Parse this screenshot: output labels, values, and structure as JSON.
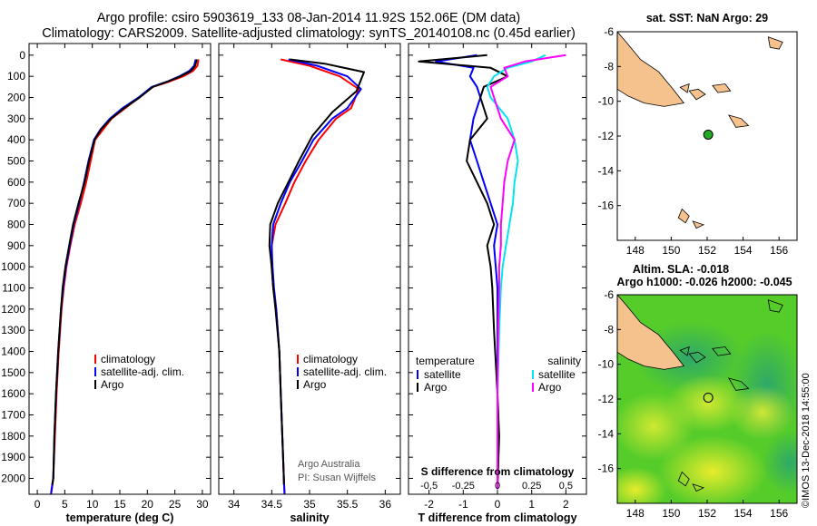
{
  "figure": {
    "title_line1": "Argo profile: csiro 5903619_133 08-Jan-2014 11.92S 152.06E (DM data)",
    "title_line2": "Climatology: CARS2009. Satellite-adjusted climatology: synTS_20140108.nc (0.45d earlier)",
    "credit": "©IMOS 13-Dec-2018 14:55:00"
  },
  "colors": {
    "climatology": "#ff0000",
    "satellite": "#0000ff",
    "argo": "#000000",
    "salinity_sat": "#00e5ee",
    "salinity_argo": "#ff00ff",
    "land": "#f5c28e",
    "float": "#22aa22"
  },
  "depth_axis": {
    "ticks": [
      0,
      100,
      200,
      300,
      400,
      500,
      600,
      700,
      800,
      900,
      1000,
      1100,
      1200,
      1300,
      1400,
      1500,
      1600,
      1700,
      1800,
      1900,
      2000
    ],
    "labels": [
      "0",
      "100",
      "200",
      "300",
      "400",
      "500",
      "600",
      "700",
      "800",
      "900",
      "1000",
      "1100",
      "1200",
      "1300",
      "1400",
      "1500",
      "1600",
      "1700",
      "1800",
      "1900",
      "2000"
    ],
    "range": [
      -55,
      2075
    ]
  },
  "chart_data": [
    {
      "type": "line",
      "id": "temperature",
      "xlabel": "temperature (deg C)",
      "xlim": [
        -1.5,
        31.5
      ],
      "xticks": [
        0,
        5,
        10,
        15,
        20,
        25,
        30
      ],
      "xticklabels": [
        "0",
        "5",
        "10",
        "15",
        "20",
        "25",
        "30"
      ],
      "legend": [
        "climatology",
        "satellite-adj. clim.",
        "Argo"
      ],
      "series": [
        {
          "name": "climatology",
          "color": "#ff0000",
          "x": [
            29.3,
            29.1,
            28.3,
            26.5,
            24.0,
            21.0,
            18.5,
            16.0,
            13.5,
            12.0,
            10.5,
            9.7,
            8.9,
            7.9,
            6.8,
            6.0,
            5.3,
            4.8,
            4.4,
            3.9,
            3.5,
            3.2,
            2.9,
            2.65,
            2.5
          ],
          "y": [
            20,
            50,
            75,
            100,
            125,
            150,
            200,
            250,
            300,
            350,
            400,
            500,
            600,
            700,
            800,
            900,
            1000,
            1100,
            1200,
            1400,
            1600,
            1800,
            2000,
            2050,
            2075
          ]
        },
        {
          "name": "satellite-adj. clim.",
          "color": "#0000ff",
          "x": [
            28.8,
            28.5,
            27.6,
            25.8,
            23.6,
            20.8,
            18.4,
            15.5,
            13.2,
            11.5,
            10.3,
            9.3,
            8.5,
            7.6,
            6.6,
            5.9,
            5.2,
            4.7,
            4.3,
            3.8,
            3.4,
            3.1,
            2.9,
            2.6,
            2.5
          ],
          "y": [
            20,
            50,
            75,
            100,
            125,
            150,
            200,
            250,
            300,
            350,
            400,
            500,
            600,
            700,
            800,
            900,
            1000,
            1100,
            1200,
            1400,
            1600,
            1800,
            2000,
            2050,
            2075
          ]
        },
        {
          "name": "Argo",
          "color": "#000000",
          "x": [
            29.0,
            28.7,
            27.9,
            26.0,
            23.7,
            21.0,
            18.6,
            15.8,
            13.4,
            11.6,
            10.4,
            9.4,
            8.6,
            7.5,
            6.5,
            5.8,
            5.1,
            4.6,
            4.3,
            3.8,
            3.4,
            3.1,
            2.9,
            2.7
          ],
          "y": [
            20,
            50,
            75,
            100,
            125,
            150,
            200,
            250,
            300,
            350,
            400,
            500,
            600,
            700,
            800,
            900,
            1000,
            1100,
            1200,
            1400,
            1600,
            1800,
            2000,
            2030
          ]
        }
      ]
    },
    {
      "type": "line",
      "id": "salinity",
      "xlabel": "salinity",
      "xlim": [
        33.8,
        36.2
      ],
      "xticks": [
        34,
        34.5,
        35,
        35.5,
        36
      ],
      "xticklabels": [
        "34",
        "34.5",
        "35",
        "35.5",
        "36"
      ],
      "legend": [
        "climatology",
        "satellite-adj. clim.",
        "Argo"
      ],
      "annotation": [
        "Argo Australia",
        "PI: Susan Wijffels"
      ],
      "series": [
        {
          "name": "climatology",
          "color": "#ff0000",
          "x": [
            34.62,
            35.0,
            35.4,
            35.65,
            35.55,
            35.35,
            35.12,
            34.95,
            34.8,
            34.68,
            34.55,
            34.5,
            34.5,
            34.52,
            34.56,
            34.6,
            34.62,
            34.64,
            34.66,
            34.67
          ],
          "y": [
            20,
            50,
            100,
            160,
            250,
            300,
            400,
            500,
            600,
            700,
            800,
            900,
            1000,
            1100,
            1200,
            1400,
            1600,
            1800,
            2000,
            2075
          ]
        },
        {
          "name": "satellite-adj. clim.",
          "color": "#0000ff",
          "x": [
            34.72,
            35.1,
            35.5,
            35.68,
            35.5,
            35.3,
            35.05,
            34.9,
            34.74,
            34.62,
            34.52,
            34.5,
            34.51,
            34.53,
            34.56,
            34.6,
            34.62,
            34.64,
            34.66,
            34.67
          ],
          "y": [
            20,
            50,
            100,
            160,
            250,
            300,
            400,
            500,
            600,
            700,
            800,
            900,
            1000,
            1100,
            1200,
            1400,
            1600,
            1800,
            2000,
            2075
          ]
        },
        {
          "name": "Argo",
          "color": "#000000",
          "x": [
            34.74,
            35.2,
            35.72,
            35.62,
            35.3,
            35.04,
            34.86,
            34.72,
            34.58,
            34.48,
            34.47,
            34.5,
            34.52,
            34.55,
            34.6,
            34.62,
            34.64,
            34.66,
            34.66
          ],
          "y": [
            20,
            40,
            80,
            170,
            270,
            380,
            500,
            600,
            700,
            800,
            900,
            1000,
            1100,
            1200,
            1400,
            1600,
            1800,
            2000,
            2030
          ]
        }
      ]
    },
    {
      "type": "line",
      "id": "difference",
      "xlabel": "T difference from climatology",
      "xlim": [
        -2.6,
        2.6
      ],
      "xticks": [
        -2,
        -1,
        0,
        1,
        2
      ],
      "xticklabels": [
        "-2",
        "-1",
        "0",
        "1",
        "2"
      ],
      "second_xlabel": "S difference from climatology",
      "second_xticks": [
        -0.5,
        -0.25,
        0,
        0.25,
        0.5
      ],
      "second_xticklabels": [
        "-0,5",
        "-0.25",
        "0",
        "0.25",
        "0,5"
      ],
      "legend_temperature_title": "temperature",
      "legend_salinity_title": "salinity",
      "legend_temperature": [
        "satellite",
        "Argo"
      ],
      "legend_salinity": [
        "satellite",
        "Argo"
      ],
      "series": [
        {
          "name": "temperature satellite",
          "color": "#0000ff",
          "x": [
            -0.6,
            -1.8,
            -0.7,
            -0.8,
            -0.6,
            -0.5,
            -0.7,
            -0.8,
            -0.6,
            -0.4,
            -0.2,
            0.0,
            -0.1,
            -0.05,
            0.0,
            0.0,
            0.0,
            0.0,
            0.0
          ],
          "y": [
            0,
            30,
            60,
            100,
            150,
            200,
            300,
            400,
            500,
            600,
            700,
            800,
            900,
            1000,
            1100,
            1300,
            1600,
            1800,
            2050
          ]
        },
        {
          "name": "temperature Argo",
          "color": "#000000",
          "x": [
            -0.3,
            -2.3,
            -0.2,
            0.3,
            -0.4,
            -0.5,
            -0.3,
            -0.8,
            -0.9,
            -0.6,
            -0.3,
            -0.1,
            -0.3,
            -0.2,
            -0.15,
            -0.1,
            0.0,
            0.05,
            0.0
          ],
          "y": [
            0,
            30,
            60,
            100,
            150,
            200,
            300,
            400,
            500,
            600,
            700,
            800,
            900,
            1000,
            1100,
            1300,
            1600,
            1800,
            2050
          ]
        },
        {
          "name": "salinity satellite",
          "color": "#00e5ee",
          "x": [
            1.4,
            1.0,
            0.3,
            -0.1,
            -0.3,
            -0.2,
            0.3,
            0.5,
            0.6,
            0.5,
            0.45,
            0.35,
            0.25,
            0.15,
            0.1,
            0.05,
            0.0,
            0.0,
            0.0
          ],
          "y": [
            0,
            30,
            60,
            100,
            150,
            200,
            300,
            400,
            500,
            600,
            700,
            800,
            900,
            1000,
            1100,
            1300,
            1600,
            1800,
            2050
          ]
        },
        {
          "name": "salinity Argo",
          "color": "#ff00ff",
          "x": [
            2.0,
            0.8,
            0.2,
            0.3,
            -0.2,
            -0.1,
            0.1,
            0.5,
            0.3,
            0.2,
            0.15,
            0.1,
            0.1,
            0.05,
            0.05,
            0.02,
            0.0,
            0.0,
            0.0
          ],
          "y": [
            0,
            30,
            60,
            100,
            150,
            200,
            300,
            400,
            500,
            600,
            700,
            800,
            900,
            1000,
            1100,
            1300,
            1600,
            1800,
            2050
          ]
        }
      ]
    },
    {
      "type": "map",
      "id": "sst-map",
      "title": "sat. SST: NaN Argo: 29",
      "xlim": [
        147,
        157
      ],
      "ylim": [
        -18,
        -6
      ],
      "xticks": [
        148,
        150,
        152,
        154,
        156
      ],
      "xticklabels": [
        "148",
        "150",
        "152",
        "154",
        "156"
      ],
      "yticks": [
        -6,
        -8,
        -10,
        -12,
        -14,
        -16
      ],
      "yticklabels": [
        "-6",
        "-8",
        "-10",
        "-12",
        "-14",
        "-16"
      ],
      "float_position": {
        "lon": 152.06,
        "lat": -11.92
      }
    },
    {
      "type": "map",
      "id": "sla-map",
      "title_line1": "Altim. SLA: -0.018",
      "title_line2": "Argo h1000: -0.026 h2000: -0.045",
      "xlim": [
        147,
        157
      ],
      "ylim": [
        -18,
        -6
      ],
      "xticks": [
        148,
        150,
        152,
        154,
        156
      ],
      "xticklabels": [
        "148",
        "150",
        "152",
        "154",
        "156"
      ],
      "yticks": [
        -6,
        -8,
        -10,
        -12,
        -14,
        -16
      ],
      "yticklabels": [
        "-6",
        "-8",
        "-10",
        "-12",
        "-14",
        "-16"
      ],
      "float_position": {
        "lon": 152.06,
        "lat": -11.92
      }
    }
  ]
}
